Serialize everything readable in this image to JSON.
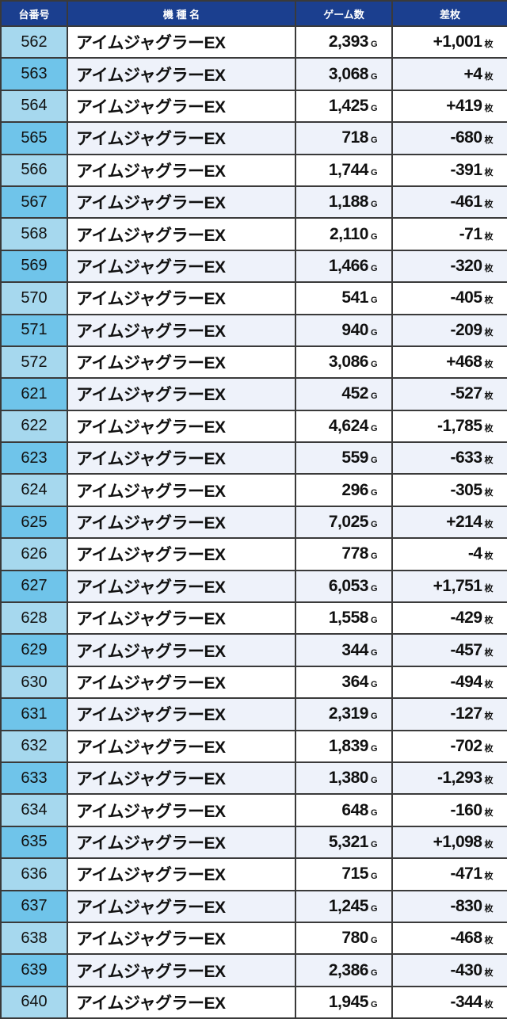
{
  "header": {
    "number": "台番号",
    "name": "機 種 名",
    "games": "ゲーム数",
    "diff": "差枚"
  },
  "units": {
    "games": "G",
    "diff": "枚"
  },
  "colors": {
    "header": "#1b3f8f",
    "num_light": "#a6d8ee",
    "num_dark": "#6fc4ea",
    "row_alt": "#eef2fa"
  },
  "rows": [
    [
      "562",
      "アイムジャグラーEX",
      "2,393",
      "+1,001"
    ],
    [
      "563",
      "アイムジャグラーEX",
      "3,068",
      "+4"
    ],
    [
      "564",
      "アイムジャグラーEX",
      "1,425",
      "+419"
    ],
    [
      "565",
      "アイムジャグラーEX",
      "718",
      "-680"
    ],
    [
      "566",
      "アイムジャグラーEX",
      "1,744",
      "-391"
    ],
    [
      "567",
      "アイムジャグラーEX",
      "1,188",
      "-461"
    ],
    [
      "568",
      "アイムジャグラーEX",
      "2,110",
      "-71"
    ],
    [
      "569",
      "アイムジャグラーEX",
      "1,466",
      "-320"
    ],
    [
      "570",
      "アイムジャグラーEX",
      "541",
      "-405"
    ],
    [
      "571",
      "アイムジャグラーEX",
      "940",
      "-209"
    ],
    [
      "572",
      "アイムジャグラーEX",
      "3,086",
      "+468"
    ],
    [
      "621",
      "アイムジャグラーEX",
      "452",
      "-527"
    ],
    [
      "622",
      "アイムジャグラーEX",
      "4,624",
      "-1,785"
    ],
    [
      "623",
      "アイムジャグラーEX",
      "559",
      "-633"
    ],
    [
      "624",
      "アイムジャグラーEX",
      "296",
      "-305"
    ],
    [
      "625",
      "アイムジャグラーEX",
      "7,025",
      "+214"
    ],
    [
      "626",
      "アイムジャグラーEX",
      "778",
      "-4"
    ],
    [
      "627",
      "アイムジャグラーEX",
      "6,053",
      "+1,751"
    ],
    [
      "628",
      "アイムジャグラーEX",
      "1,558",
      "-429"
    ],
    [
      "629",
      "アイムジャグラーEX",
      "344",
      "-457"
    ],
    [
      "630",
      "アイムジャグラーEX",
      "364",
      "-494"
    ],
    [
      "631",
      "アイムジャグラーEX",
      "2,319",
      "-127"
    ],
    [
      "632",
      "アイムジャグラーEX",
      "1,839",
      "-702"
    ],
    [
      "633",
      "アイムジャグラーEX",
      "1,380",
      "-1,293"
    ],
    [
      "634",
      "アイムジャグラーEX",
      "648",
      "-160"
    ],
    [
      "635",
      "アイムジャグラーEX",
      "5,321",
      "+1,098"
    ],
    [
      "636",
      "アイムジャグラーEX",
      "715",
      "-471"
    ],
    [
      "637",
      "アイムジャグラーEX",
      "1,245",
      "-830"
    ],
    [
      "638",
      "アイムジャグラーEX",
      "780",
      "-468"
    ],
    [
      "639",
      "アイムジャグラーEX",
      "2,386",
      "-430"
    ],
    [
      "640",
      "アイムジャグラーEX",
      "1,945",
      "-344"
    ]
  ]
}
